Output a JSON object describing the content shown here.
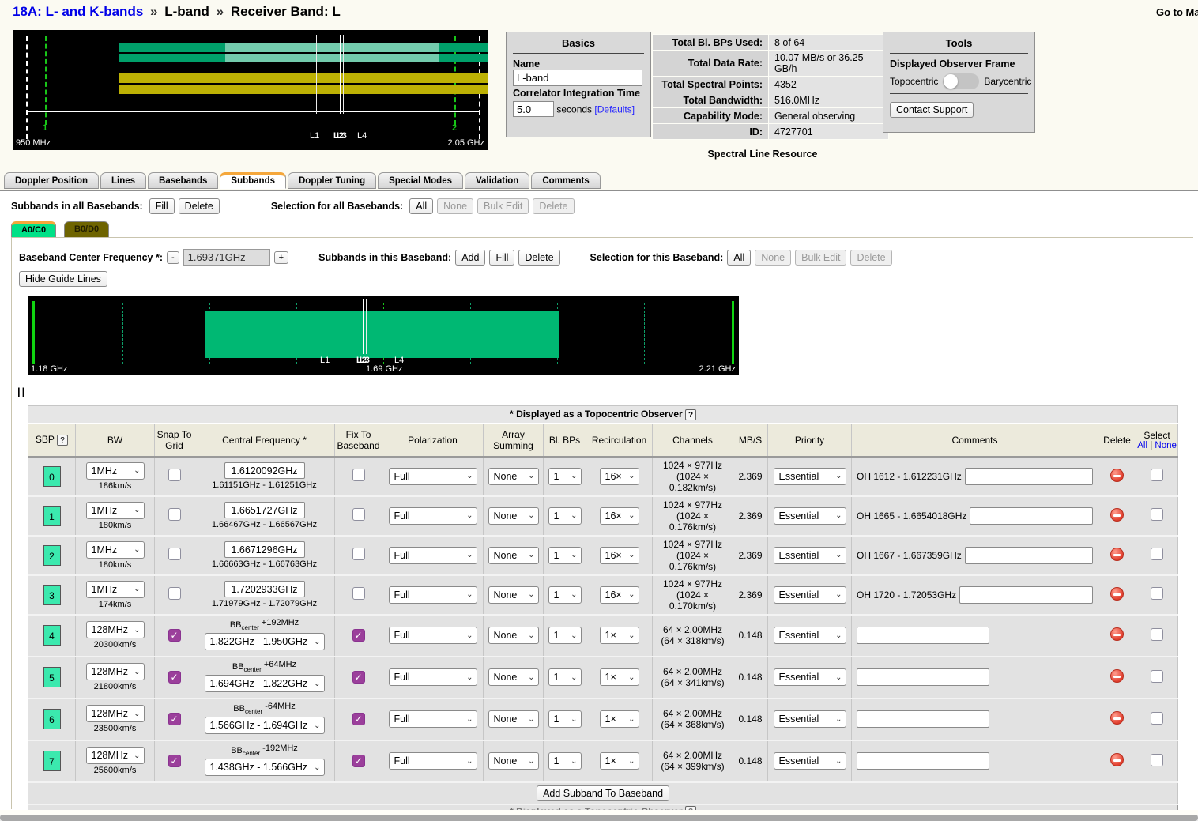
{
  "icons": {
    "help": "?",
    "chevron": "⌄",
    "check": "✓",
    "handle": "||",
    "minus": "-",
    "plus": "+"
  },
  "page": {
    "breadcrumb": {
      "project": "18A: L- and K-bands",
      "sep": "»",
      "group": "L-band",
      "current": "Receiver Band: L"
    },
    "top_right_link": "Go to Ma",
    "resource_type_label": "Spectral Line Resource"
  },
  "overview_plot": {
    "start_label": "950 MHz",
    "end_label": "2.05 GHz",
    "marker1": "1",
    "marker2": "2",
    "line_labels": [
      "L1",
      "L2",
      "L3",
      "L4"
    ]
  },
  "basics": {
    "title": "Basics",
    "name_label": "Name",
    "name_value": "L-band",
    "cit_label": "Correlator Integration Time",
    "cit_value": "5.0",
    "cit_units": "seconds",
    "defaults_link": "[Defaults]"
  },
  "stats": {
    "rows": [
      {
        "label": "Total Bl. BPs Used:",
        "value": "8 of 64"
      },
      {
        "label": "Total Data Rate:",
        "value": "10.07 MB/s or 36.25 GB/h"
      },
      {
        "label": "Total Spectral Points:",
        "value": "4352"
      },
      {
        "label": "Total Bandwidth:",
        "value": "516.0MHz"
      },
      {
        "label": "Capability Mode:",
        "value": "General observing"
      },
      {
        "label": "ID:",
        "value": "4727701"
      }
    ]
  },
  "tools": {
    "title": "Tools",
    "frame_label": "Displayed Observer Frame",
    "left_option": "Topocentric",
    "right_option": "Barycentric",
    "contact_button": "Contact Support"
  },
  "tabs": {
    "items": [
      "Doppler Position",
      "Lines",
      "Basebands",
      "Subbands",
      "Doppler Tuning",
      "Special Modes",
      "Validation",
      "Comments"
    ],
    "active": "Subbands"
  },
  "all_basebands_bar": {
    "subbands_label": "Subbands in all Basebands:",
    "fill": "Fill",
    "delete": "Delete",
    "selection_label": "Selection for all Basebands:",
    "all": "All",
    "none": "None",
    "bulk_edit": "Bulk Edit",
    "delete2": "Delete"
  },
  "baseband_tabs": {
    "active": "A0/C0",
    "inactive": "B0/D0"
  },
  "baseband_bar": {
    "label": "Baseband Center Frequency *:",
    "value": "1.69371GHz",
    "subbands_label": "Subbands in this Baseband:",
    "add": "Add",
    "fill": "Fill",
    "delete": "Delete",
    "selection_label": "Selection for this Baseband:",
    "all": "All",
    "none": "None",
    "bulk_edit": "Bulk Edit",
    "delete2": "Delete",
    "hide_guides": "Hide Guide Lines"
  },
  "baseband_plot": {
    "start_label": "1.18 GHz",
    "center_label": "1.69 GHz",
    "end_label": "2.21 GHz",
    "line_labels": [
      "L1",
      "L2",
      "L3",
      "L4"
    ]
  },
  "subband_table": {
    "caption": "* Displayed as a Topocentric Observer",
    "columns": {
      "sbp": "SBP",
      "bw": "BW",
      "snap": "Snap To Grid",
      "cf": "Central Frequency *",
      "fix": "Fix To Baseband",
      "pol": "Polarization",
      "arr": "Array Summing",
      "blbps": "Bl. BPs",
      "recirc": "Recirculation",
      "channels": "Channels",
      "mbs": "MB/S",
      "priority": "Priority",
      "comments": "Comments",
      "delete": "Delete",
      "select": "Select"
    },
    "select_all": "All",
    "select_sep": "|",
    "select_none": "None",
    "bb_label": "BB",
    "bb_sub": "center",
    "rows": [
      {
        "sbp": "0",
        "bw": "1MHz",
        "velocity": "186km/s",
        "snap": false,
        "cf_mode": "input",
        "cf_value": "1.6120092GHz",
        "cf_range": "1.61151GHz - 1.61251GHz",
        "fix": false,
        "pol": "Full",
        "arr": "None",
        "blbps": "1",
        "recirc": "16×",
        "channels": "1024 × 977Hz",
        "channels_vel": "(1024 × 0.182km/s)",
        "mbs": "2.369",
        "priority": "Essential",
        "comment_label": "OH 1612 - 1.612231GHz",
        "comment_value": ""
      },
      {
        "sbp": "1",
        "bw": "1MHz",
        "velocity": "180km/s",
        "snap": false,
        "cf_mode": "input",
        "cf_value": "1.6651727GHz",
        "cf_range": "1.66467GHz - 1.66567GHz",
        "fix": false,
        "pol": "Full",
        "arr": "None",
        "blbps": "1",
        "recirc": "16×",
        "channels": "1024 × 977Hz",
        "channels_vel": "(1024 × 0.176km/s)",
        "mbs": "2.369",
        "priority": "Essential",
        "comment_label": "OH 1665 - 1.6654018GHz",
        "comment_value": ""
      },
      {
        "sbp": "2",
        "bw": "1MHz",
        "velocity": "180km/s",
        "snap": false,
        "cf_mode": "input",
        "cf_value": "1.6671296GHz",
        "cf_range": "1.66663GHz - 1.66763GHz",
        "fix": false,
        "pol": "Full",
        "arr": "None",
        "blbps": "1",
        "recirc": "16×",
        "channels": "1024 × 977Hz",
        "channels_vel": "(1024 × 0.176km/s)",
        "mbs": "2.369",
        "priority": "Essential",
        "comment_label": "OH 1667 - 1.667359GHz",
        "comment_value": ""
      },
      {
        "sbp": "3",
        "bw": "1MHz",
        "velocity": "174km/s",
        "snap": false,
        "cf_mode": "input",
        "cf_value": "1.7202933GHz",
        "cf_range": "1.71979GHz - 1.72079GHz",
        "fix": false,
        "pol": "Full",
        "arr": "None",
        "blbps": "1",
        "recirc": "16×",
        "channels": "1024 × 977Hz",
        "channels_vel": "(1024 × 0.170km/s)",
        "mbs": "2.369",
        "priority": "Essential",
        "comment_label": "OH 1720 - 1.72053GHz",
        "comment_value": ""
      },
      {
        "sbp": "4",
        "bw": "128MHz",
        "velocity": "20300km/s",
        "snap": true,
        "cf_mode": "select",
        "bb_offset": "+192MHz",
        "cf_value": "1.822GHz - 1.950GHz",
        "fix": true,
        "pol": "Full",
        "arr": "None",
        "blbps": "1",
        "recirc": "1×",
        "channels": "64 × 2.00MHz",
        "channels_vel": "(64 × 318km/s)",
        "mbs": "0.148",
        "priority": "Essential",
        "comment_label": null,
        "comment_value": ""
      },
      {
        "sbp": "5",
        "bw": "128MHz",
        "velocity": "21800km/s",
        "snap": true,
        "cf_mode": "select",
        "bb_offset": "+64MHz",
        "cf_value": "1.694GHz - 1.822GHz",
        "fix": true,
        "pol": "Full",
        "arr": "None",
        "blbps": "1",
        "recirc": "1×",
        "channels": "64 × 2.00MHz",
        "channels_vel": "(64 × 341km/s)",
        "mbs": "0.148",
        "priority": "Essential",
        "comment_label": null,
        "comment_value": ""
      },
      {
        "sbp": "6",
        "bw": "128MHz",
        "velocity": "23500km/s",
        "snap": true,
        "cf_mode": "select",
        "bb_offset": "-64MHz",
        "cf_value": "1.566GHz - 1.694GHz",
        "fix": true,
        "pol": "Full",
        "arr": "None",
        "blbps": "1",
        "recirc": "1×",
        "channels": "64 × 2.00MHz",
        "channels_vel": "(64 × 368km/s)",
        "mbs": "0.148",
        "priority": "Essential",
        "comment_label": null,
        "comment_value": ""
      },
      {
        "sbp": "7",
        "bw": "128MHz",
        "velocity": "25600km/s",
        "snap": true,
        "cf_mode": "select",
        "bb_offset": "-192MHz",
        "cf_value": "1.438GHz - 1.566GHz",
        "fix": true,
        "pol": "Full",
        "arr": "None",
        "blbps": "1",
        "recirc": "1×",
        "channels": "64 × 2.00MHz",
        "channels_vel": "(64 × 399km/s)",
        "mbs": "0.148",
        "priority": "Essential",
        "comment_label": null,
        "comment_value": ""
      }
    ],
    "add_button": "Add Subband To Baseband"
  }
}
